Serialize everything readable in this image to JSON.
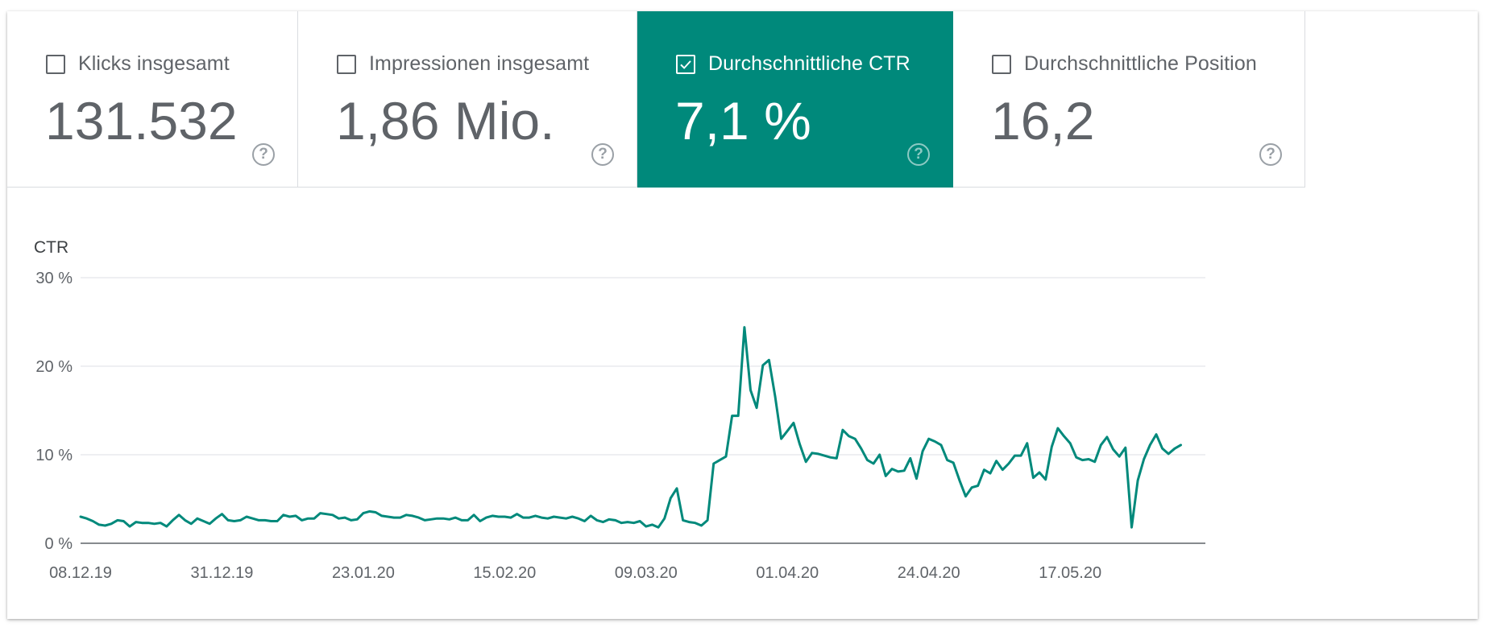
{
  "metrics": [
    {
      "label": "Klicks insgesamt",
      "value": "131.532",
      "checked": false,
      "help_icon": "help-circle-icon"
    },
    {
      "label": "Impressionen insgesamt",
      "value": "1,86 Mio.",
      "checked": false,
      "help_icon": "help-circle-icon"
    },
    {
      "label": "Durchschnittliche CTR",
      "value": "7,1 %",
      "checked": true,
      "help_icon": "help-circle-icon"
    },
    {
      "label": "Durchschnittliche Position",
      "value": "16,2",
      "checked": false,
      "help_icon": "help-circle-icon"
    }
  ],
  "colors": {
    "accent": "#00897b",
    "line": "#00897b",
    "text": "#5f6368",
    "grid": "#e8eaed",
    "axis": "#5f6368"
  },
  "chart_data": {
    "type": "line",
    "ylabel": "CTR",
    "ylim": [
      0,
      30
    ],
    "y_ticks": [
      {
        "value": 0,
        "label": "0 %"
      },
      {
        "value": 10,
        "label": "10 %"
      },
      {
        "value": 20,
        "label": "20 %"
      },
      {
        "value": 30,
        "label": "30 %"
      }
    ],
    "x_tick_labels": [
      "08.12.19",
      "31.12.19",
      "23.01.20",
      "15.02.20",
      "09.03.20",
      "01.04.20",
      "24.04.20",
      "17.05.20"
    ],
    "x_tick_day_index": [
      0,
      23,
      46,
      69,
      92,
      115,
      138,
      161
    ],
    "x_range_days": [
      0,
      183
    ],
    "grid": true,
    "legend": "none",
    "series": [
      {
        "values": [
          3.0,
          2.8,
          2.5,
          2.1,
          2.0,
          2.2,
          2.6,
          2.5,
          1.9,
          2.4,
          2.3,
          2.3,
          2.2,
          2.3,
          1.9,
          2.6,
          3.2,
          2.6,
          2.2,
          2.8,
          2.5,
          2.2,
          2.8,
          3.3,
          2.6,
          2.5,
          2.6,
          3.0,
          2.8,
          2.6,
          2.6,
          2.5,
          2.5,
          3.2,
          3.0,
          3.1,
          2.6,
          2.8,
          2.8,
          3.4,
          3.3,
          3.2,
          2.8,
          2.9,
          2.6,
          2.7,
          3.4,
          3.6,
          3.5,
          3.1,
          3.0,
          2.9,
          2.9,
          3.2,
          3.1,
          2.9,
          2.6,
          2.7,
          2.8,
          2.8,
          2.7,
          2.9,
          2.6,
          2.6,
          3.2,
          2.5,
          2.9,
          3.1,
          3.0,
          3.0,
          2.9,
          3.3,
          2.9,
          2.9,
          3.1,
          2.9,
          2.8,
          3.0,
          2.9,
          2.8,
          3.0,
          2.8,
          2.5,
          3.1,
          2.6,
          2.4,
          2.7,
          2.6,
          2.3,
          2.4,
          2.3,
          2.5,
          1.9,
          2.1,
          1.8,
          2.8,
          5.1,
          6.2,
          2.6,
          2.4,
          2.3,
          2.0,
          2.6,
          9.0,
          9.4,
          9.8,
          14.4,
          14.4,
          24.4,
          17.3,
          15.3,
          20.1,
          20.7,
          16.6,
          11.8,
          12.7,
          13.6,
          11.2,
          9.2,
          10.2,
          10.1,
          9.9,
          9.7,
          9.6,
          12.8,
          12.1,
          11.8,
          10.7,
          9.4,
          9.0,
          10.0,
          7.6,
          8.4,
          8.1,
          8.2,
          9.6,
          7.3,
          10.4,
          11.8,
          11.5,
          11.1,
          9.4,
          9.1,
          7.1,
          5.3,
          6.3,
          6.5,
          8.3,
          7.9,
          9.3,
          8.3,
          9.0,
          9.9,
          9.9,
          11.3,
          7.4,
          8.0,
          7.2,
          10.9,
          13.0,
          12.1,
          11.3,
          9.7,
          9.4,
          9.5,
          9.2,
          11.1,
          12.0,
          10.6,
          9.8,
          10.8,
          1.8,
          7.1,
          9.5,
          11.1,
          12.3,
          10.7,
          10.1,
          10.7,
          11.1
        ]
      }
    ]
  }
}
